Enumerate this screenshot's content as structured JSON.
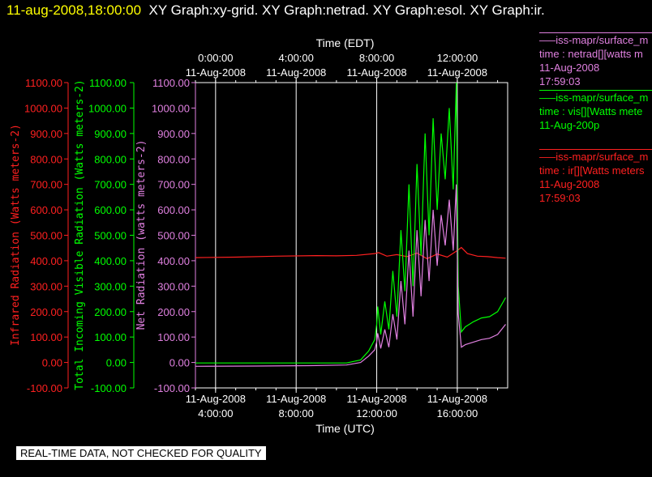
{
  "header": {
    "timestamp": "11-aug-2008,18:00:00",
    "titles": "XY Graph:xy-grid.  XY Graph:netrad.  XY Graph:esol.  XY Graph:ir."
  },
  "footer": {
    "quality_note": "REAL-TIME DATA, NOT CHECKED FOR QUALITY"
  },
  "legend": [
    {
      "lines": [
        "—–iss-mapr/surface_m",
        "time : netrad[][watts m",
        "11-Aug-2008",
        "17:59:03"
      ],
      "color": "#e080e0"
    },
    {
      "lines": [
        "—–iss-mapr/surface_m",
        "time : vis[][Watts mete",
        "11-Aug-200p",
        ""
      ],
      "color": "#00ff00"
    },
    {
      "lines": [
        "—–iss-mapr/surface_m",
        "time : ir[][Watts meters",
        "11-Aug-2008",
        "17:59:03"
      ],
      "color": "#ff2020"
    }
  ],
  "chart_data": {
    "type": "line",
    "colors": {
      "ir": "#ff2020",
      "vis": "#00ff00",
      "netrad": "#e080e0",
      "grid": "#ffffff"
    },
    "x_bottom": {
      "label": "Time (UTC)",
      "ticks": [
        {
          "t": 4,
          "date": "11-Aug-2008",
          "time": "4:00:00"
        },
        {
          "t": 8,
          "date": "11-Aug-2008",
          "time": "8:00:00"
        },
        {
          "t": 12,
          "date": "11-Aug-2008",
          "time": "12:00:00"
        },
        {
          "t": 16,
          "date": "11-Aug-2008",
          "time": "16:00:00"
        }
      ],
      "range": [
        3,
        18.5
      ]
    },
    "x_top": {
      "label": "Time (EDT)",
      "ticks": [
        {
          "t": 4,
          "time": "0:00:00",
          "date": "11-Aug-2008"
        },
        {
          "t": 8,
          "time": "4:00:00",
          "date": "11-Aug-2008"
        },
        {
          "t": 12,
          "time": "8:00:00",
          "date": "11-Aug-2008"
        },
        {
          "t": 16,
          "time": "12:00:00",
          "date": "11-Aug-2008"
        }
      ]
    },
    "y_axes": [
      {
        "label": "Infrared Radiation (Watts meters-2)",
        "color": "#ff2020",
        "range": [
          -100,
          1100
        ],
        "ticks": [
          "-100.00",
          "0.00",
          "100.00",
          "200.00",
          "300.00",
          "400.00",
          "500.00",
          "600.00",
          "700.00",
          "800.00",
          "900.00",
          "1000.00",
          "1100.00"
        ]
      },
      {
        "label": "Total Incoming Visible Radiation (Watts meters-2)",
        "color": "#00ff00",
        "range": [
          -100,
          1100
        ],
        "ticks": [
          "-100.00",
          "0.00",
          "100.00",
          "200.00",
          "300.00",
          "400.00",
          "500.00",
          "600.00",
          "700.00",
          "800.00",
          "900.00",
          "1000.00",
          "1100.00"
        ]
      },
      {
        "label": "Net Radiation (watts meters-2)",
        "color": "#e080e0",
        "range": [
          -100,
          1100
        ],
        "ticks": [
          "-100.00",
          "0.00",
          "100.00",
          "200.00",
          "300.00",
          "400.00",
          "500.00",
          "600.00",
          "700.00",
          "800.00",
          "900.00",
          "1000.00",
          "1100.00"
        ]
      }
    ],
    "series": [
      {
        "key": "ir",
        "x": [
          3,
          5,
          7,
          9,
          10,
          11,
          11.9,
          12.1,
          12.5,
          13,
          13.5,
          14,
          14.5,
          15,
          15.5,
          16,
          16.2,
          16.5,
          17,
          17.5,
          18,
          18.4
        ],
        "y": [
          412,
          414,
          418,
          420,
          419,
          421,
          428,
          432,
          418,
          424,
          416,
          430,
          408,
          426,
          414,
          440,
          452,
          428,
          418,
          416,
          412,
          410
        ]
      },
      {
        "key": "vis",
        "x": [
          3,
          6,
          9,
          10.5,
          11.2,
          11.6,
          11.9,
          12.0,
          12.05,
          12.2,
          12.4,
          12.6,
          12.8,
          13.0,
          13.2,
          13.4,
          13.6,
          13.8,
          14.0,
          14.2,
          14.4,
          14.6,
          14.8,
          15.0,
          15.2,
          15.4,
          15.6,
          15.8,
          15.95,
          16.05,
          16.2,
          16.4,
          16.8,
          17.2,
          17.6,
          18.0,
          18.4
        ],
        "y": [
          -2,
          -2,
          -2,
          -2,
          10,
          45,
          90,
          150,
          220,
          110,
          240,
          130,
          360,
          180,
          520,
          280,
          700,
          300,
          780,
          420,
          900,
          500,
          960,
          600,
          900,
          720,
          1000,
          680,
          1100,
          300,
          120,
          140,
          160,
          175,
          180,
          200,
          255
        ]
      },
      {
        "key": "netrad",
        "x": [
          3,
          6,
          9,
          10.5,
          11.2,
          11.6,
          11.9,
          12.0,
          12.05,
          12.2,
          12.4,
          12.6,
          12.8,
          13.0,
          13.2,
          13.4,
          13.6,
          13.8,
          14.0,
          14.2,
          14.4,
          14.6,
          14.8,
          15.0,
          15.2,
          15.4,
          15.6,
          15.8,
          15.95,
          16.05,
          16.2,
          16.4,
          16.8,
          17.2,
          17.6,
          18.0,
          18.4
        ],
        "y": [
          -15,
          -14,
          -12,
          -10,
          0,
          25,
          50,
          80,
          115,
          55,
          130,
          60,
          190,
          90,
          320,
          150,
          440,
          180,
          520,
          260,
          560,
          320,
          600,
          380,
          580,
          460,
          640,
          440,
          700,
          190,
          60,
          70,
          80,
          90,
          95,
          110,
          150
        ]
      }
    ]
  }
}
